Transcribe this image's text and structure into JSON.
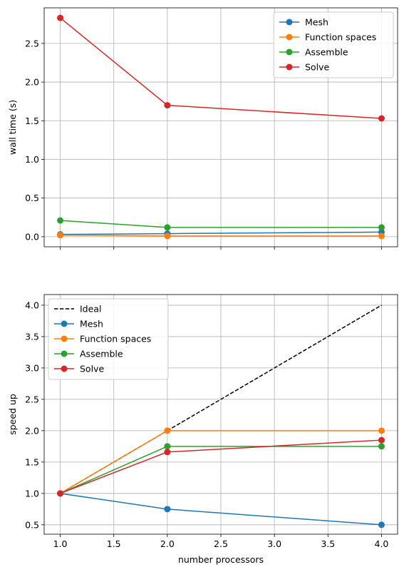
{
  "chart_data": [
    {
      "type": "line",
      "title": "",
      "xlabel": "",
      "ylabel": "wall time (s)",
      "xlim": [
        0.85,
        4.15
      ],
      "ylim": [
        -0.13,
        2.96
      ],
      "x_ticks": [
        1.0,
        1.5,
        2.0,
        2.5,
        3.0,
        3.5,
        4.0
      ],
      "x_tick_labels_visible": false,
      "y_ticks": [
        0.0,
        0.5,
        1.0,
        1.5,
        2.0,
        2.5
      ],
      "y_tick_labels": [
        "0.0",
        "0.5",
        "1.0",
        "1.5",
        "2.0",
        "2.5"
      ],
      "grid": true,
      "legend_position": "top-right",
      "x": [
        1,
        2,
        4
      ],
      "series": [
        {
          "name": "Mesh",
          "color": "#1f77b4",
          "marker": "circle",
          "values": [
            0.03,
            0.04,
            0.06
          ]
        },
        {
          "name": "Function spaces",
          "color": "#ff7f0e",
          "marker": "circle",
          "values": [
            0.02,
            0.01,
            0.01
          ]
        },
        {
          "name": "Assemble",
          "color": "#2ca02c",
          "marker": "circle",
          "values": [
            0.21,
            0.12,
            0.12
          ]
        },
        {
          "name": "Solve",
          "color": "#d62728",
          "marker": "circle",
          "values": [
            2.83,
            1.7,
            1.53
          ]
        }
      ]
    },
    {
      "type": "line",
      "title": "",
      "xlabel": "number processors",
      "ylabel": "speed up",
      "xlim": [
        0.85,
        4.15
      ],
      "ylim": [
        0.35,
        4.17
      ],
      "x_ticks": [
        1.0,
        1.5,
        2.0,
        2.5,
        3.0,
        3.5,
        4.0
      ],
      "x_tick_labels": [
        "1.0",
        "1.5",
        "2.0",
        "2.5",
        "3.0",
        "3.5",
        "4.0"
      ],
      "y_ticks": [
        0.5,
        1.0,
        1.5,
        2.0,
        2.5,
        3.0,
        3.5,
        4.0
      ],
      "y_tick_labels": [
        "0.5",
        "1.0",
        "1.5",
        "2.0",
        "2.5",
        "3.0",
        "3.5",
        "4.0"
      ],
      "grid": true,
      "legend_position": "top-left",
      "x": [
        1,
        2,
        4
      ],
      "series": [
        {
          "name": "Ideal",
          "color": "#000000",
          "marker": "none",
          "dashed": true,
          "values": [
            1.0,
            2.0,
            4.0
          ]
        },
        {
          "name": "Mesh",
          "color": "#1f77b4",
          "marker": "circle",
          "values": [
            1.0,
            0.75,
            0.5
          ]
        },
        {
          "name": "Function spaces",
          "color": "#ff7f0e",
          "marker": "circle",
          "values": [
            1.0,
            2.0,
            2.0
          ]
        },
        {
          "name": "Assemble",
          "color": "#2ca02c",
          "marker": "circle",
          "values": [
            1.0,
            1.75,
            1.75
          ]
        },
        {
          "name": "Solve",
          "color": "#d62728",
          "marker": "circle",
          "values": [
            1.0,
            1.66,
            1.85
          ]
        }
      ]
    }
  ]
}
